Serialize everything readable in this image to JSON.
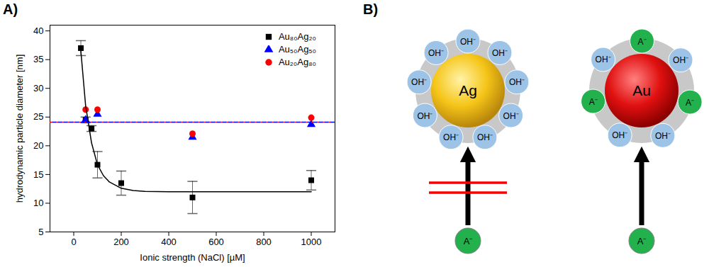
{
  "chart_data": {
    "type": "scatter",
    "title": "A)",
    "x_label": "Ionic strength (NaCl) [µM]",
    "y_label": "hydrodynamic particle diameter [nm]",
    "xlim": [
      -100,
      1100
    ],
    "xticks": [
      0,
      200,
      400,
      600,
      800,
      1000
    ],
    "ylim": [
      5,
      41
    ],
    "yticks": [
      5,
      10,
      15,
      20,
      25,
      30,
      35,
      40
    ],
    "legend": "top-right",
    "grid": false,
    "series": [
      {
        "name": "Au₈₀Ag₂₀",
        "color": "#000000",
        "marker": "square",
        "x": [
          30,
          50,
          75,
          100,
          200,
          500,
          1000
        ],
        "values": [
          37,
          24.5,
          23,
          16.7,
          13.5,
          11,
          14
        ],
        "yerr": [
          1.3,
          0.5,
          0.5,
          2.3,
          2.1,
          2.8,
          1.7
        ]
      },
      {
        "name": "Au₅₀Ag₅₀",
        "color": "#0000ff",
        "marker": "triangle",
        "x": [
          50,
          100,
          500,
          1000
        ],
        "values": [
          24.5,
          25.5,
          21.5,
          23.7
        ]
      },
      {
        "name": "Au₂₀Ag₈₀",
        "color": "#ff0000",
        "marker": "circle",
        "x": [
          50,
          100,
          500,
          1000
        ],
        "values": [
          26.3,
          26.3,
          22.1,
          24.9
        ]
      },
      {
        "type": "line",
        "color": "#000000",
        "line_style": "solid",
        "x": [
          30,
          50,
          75,
          100,
          125,
          150,
          200,
          250,
          300,
          400,
          500,
          700,
          1000
        ],
        "values": [
          36.5,
          27,
          20.5,
          16.7,
          14.8,
          13.7,
          12.6,
          12.2,
          12.05,
          12,
          12,
          12,
          12
        ]
      },
      {
        "type": "line",
        "color": "#ff0000",
        "line_style": "dashed",
        "x": [
          -100,
          1100
        ],
        "values": [
          24.1,
          24.1
        ]
      },
      {
        "type": "line",
        "color": "#0000ff",
        "line_style": "dashed",
        "x": [
          -100,
          1100
        ],
        "values": [
          24.1,
          24.1
        ]
      }
    ]
  },
  "diagram": {
    "label": "B)",
    "panels": [
      {
        "core": "Ag",
        "ligands": [
          "OH⁻",
          "OH⁻",
          "OH⁻",
          "OH⁻",
          "OH⁻",
          "OH⁻",
          "OH⁻",
          "OH⁻",
          "OH⁻"
        ],
        "incoming": "A⁻",
        "blocked": true
      },
      {
        "core": "Au",
        "ligands": [
          "OH⁻",
          "A⁻",
          "OH⁻",
          "A⁻",
          "OH⁻",
          "OH⁻",
          "A⁻"
        ],
        "incoming": "A⁻",
        "blocked": false
      }
    ]
  }
}
